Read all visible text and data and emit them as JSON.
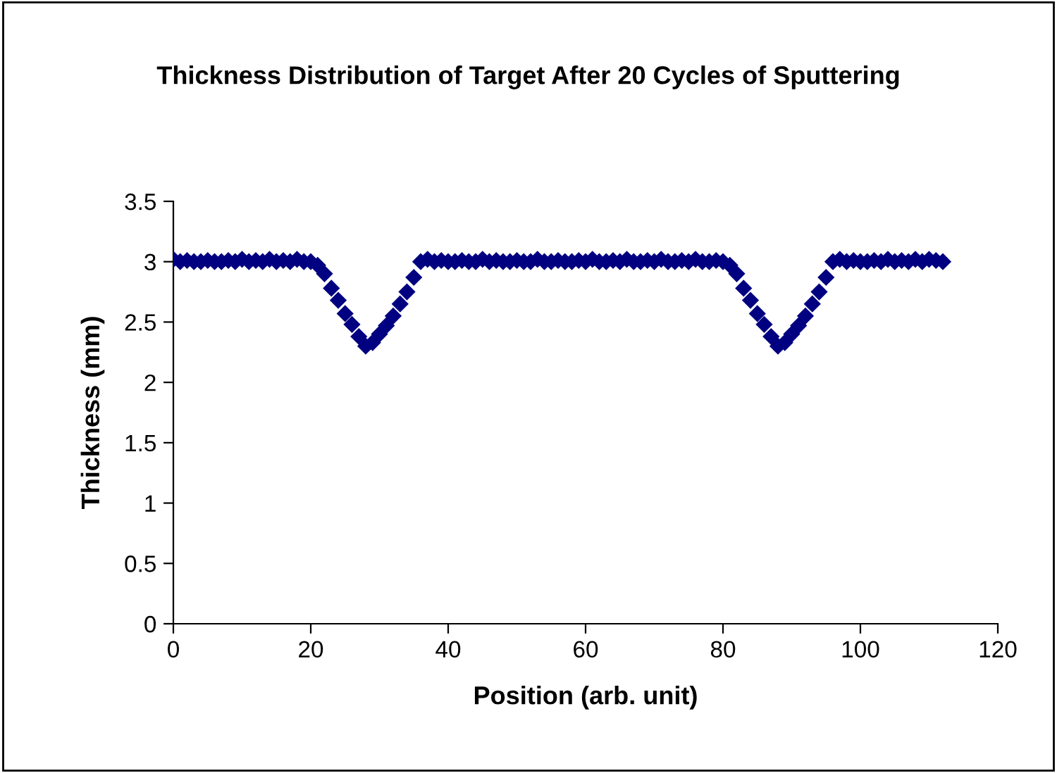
{
  "chart_data": {
    "type": "scatter",
    "title": "Thickness Distribution of Target After 20 Cycles of Sputtering",
    "xlabel": "Position (arb. unit)",
    "ylabel": "Thickness (mm)",
    "x": [
      0,
      1,
      2,
      3,
      4,
      5,
      6,
      7,
      8,
      9,
      10,
      11,
      12,
      13,
      14,
      15,
      16,
      17,
      18,
      19,
      20,
      21,
      22,
      23,
      24,
      25,
      26,
      27,
      28,
      29,
      30,
      31,
      32,
      33,
      34,
      35,
      36,
      37,
      38,
      39,
      40,
      41,
      42,
      43,
      44,
      45,
      46,
      47,
      48,
      49,
      50,
      51,
      52,
      53,
      54,
      55,
      56,
      57,
      58,
      59,
      60,
      61,
      62,
      63,
      64,
      65,
      66,
      67,
      68,
      69,
      70,
      71,
      72,
      73,
      74,
      75,
      76,
      77,
      78,
      79,
      80,
      81,
      82,
      83,
      84,
      85,
      86,
      87,
      88,
      89,
      90,
      91,
      92,
      93,
      94,
      95,
      96,
      97,
      98,
      99,
      100,
      101,
      102,
      103,
      104,
      105,
      106,
      107,
      108,
      109,
      110,
      111,
      112
    ],
    "values": [
      3.02,
      3.0,
      3.01,
      3.0,
      3.0,
      3.01,
      3.0,
      3.0,
      3.01,
      3.0,
      3.02,
      3.0,
      3.01,
      3.0,
      3.02,
      3.0,
      3.01,
      3.0,
      3.02,
      3.0,
      3.0,
      2.97,
      2.9,
      2.78,
      2.68,
      2.57,
      2.48,
      2.38,
      2.3,
      2.33,
      2.4,
      2.47,
      2.55,
      2.65,
      2.75,
      2.87,
      3.0,
      3.02,
      3.0,
      3.01,
      3.0,
      3.0,
      3.01,
      3.0,
      3.0,
      3.02,
      3.0,
      3.01,
      3.0,
      3.0,
      3.01,
      3.0,
      3.0,
      3.02,
      3.0,
      3.0,
      3.01,
      3.0,
      3.0,
      3.01,
      3.0,
      3.02,
      3.0,
      3.0,
      3.01,
      3.0,
      3.02,
      3.0,
      3.0,
      3.01,
      3.0,
      3.02,
      3.0,
      3.0,
      3.01,
      3.0,
      3.02,
      3.0,
      3.0,
      3.01,
      3.0,
      2.97,
      2.9,
      2.78,
      2.68,
      2.57,
      2.48,
      2.38,
      2.3,
      2.33,
      2.4,
      2.47,
      2.55,
      2.65,
      2.75,
      2.87,
      3.0,
      3.02,
      3.0,
      3.01,
      3.0,
      3.0,
      3.01,
      3.0,
      3.02,
      3.0,
      3.01,
      3.0,
      3.02,
      3.0,
      3.02,
      3.01,
      3.0
    ],
    "color": "#000080",
    "marker": "diamond",
    "xlim": [
      0,
      120
    ],
    "xticks": [
      0,
      20,
      40,
      60,
      80,
      100,
      120
    ],
    "ylim": [
      0,
      3.5
    ],
    "yticks": [
      0,
      0.5,
      1,
      1.5,
      2,
      2.5,
      3,
      3.5
    ],
    "grid": false,
    "legend": false
  }
}
